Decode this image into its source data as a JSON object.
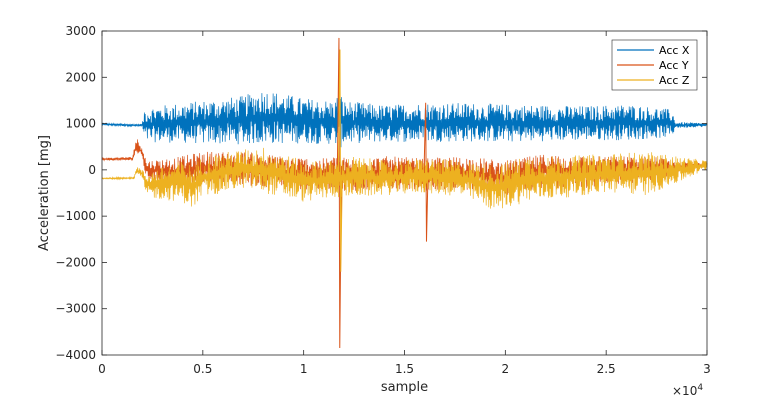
{
  "chart_data": {
    "type": "line",
    "title": "",
    "xlabel": "sample",
    "ylabel": "Acceleration [mg]",
    "x_exponent_label": "×10",
    "x_exponent_power": "4",
    "xlim": [
      0,
      30000
    ],
    "ylim": [
      -4000,
      3000
    ],
    "x_ticks": [
      0,
      5000,
      10000,
      15000,
      20000,
      25000,
      30000
    ],
    "x_tick_labels": [
      "0",
      "0.5",
      "1",
      "1.5",
      "2",
      "2.5",
      "3"
    ],
    "y_ticks": [
      -4000,
      -3000,
      -2000,
      -1000,
      0,
      1000,
      2000,
      3000
    ],
    "y_tick_labels": [
      "−4000",
      "−3000",
      "−2000",
      "−1000",
      "0",
      "1000",
      "2000",
      "3000"
    ],
    "grid": false,
    "legend_position": "top-right",
    "series": [
      {
        "name": "Acc X",
        "color": "#0072BD",
        "rendering": "band",
        "points": [
          [
            0,
            960,
            1010
          ],
          [
            1500,
            940,
            990
          ],
          [
            2000,
            930,
            1000
          ],
          [
            2100,
            600,
            1350
          ],
          [
            4000,
            580,
            1450
          ],
          [
            5000,
            560,
            1500
          ],
          [
            7000,
            550,
            1600
          ],
          [
            8000,
            560,
            1750
          ],
          [
            10000,
            570,
            1550
          ],
          [
            11500,
            550,
            1500
          ],
          [
            11800,
            450,
            1700
          ],
          [
            12000,
            560,
            1500
          ],
          [
            14000,
            600,
            1400
          ],
          [
            16000,
            600,
            1450
          ],
          [
            18000,
            610,
            1450
          ],
          [
            20000,
            600,
            1420
          ],
          [
            22000,
            620,
            1400
          ],
          [
            24000,
            640,
            1380
          ],
          [
            26000,
            640,
            1420
          ],
          [
            27500,
            680,
            1350
          ],
          [
            28300,
            700,
            1300
          ],
          [
            28400,
            900,
            1040
          ],
          [
            30000,
            930,
            1010
          ]
        ]
      },
      {
        "name": "Acc Y",
        "color": "#D95319",
        "rendering": "band",
        "points": [
          [
            0,
            200,
            260
          ],
          [
            1500,
            200,
            280
          ],
          [
            1700,
            350,
            700
          ],
          [
            2000,
            200,
            550
          ],
          [
            2200,
            -200,
            200
          ],
          [
            4000,
            -400,
            300
          ],
          [
            5000,
            -300,
            400
          ],
          [
            7000,
            -350,
            400
          ],
          [
            9000,
            -400,
            300
          ],
          [
            11000,
            -450,
            250
          ],
          [
            11500,
            -400,
            300
          ],
          [
            12500,
            -500,
            250
          ],
          [
            14000,
            -400,
            300
          ],
          [
            16000,
            -450,
            250
          ],
          [
            18000,
            -450,
            300
          ],
          [
            20000,
            -550,
            200
          ],
          [
            22000,
            -400,
            350
          ],
          [
            24000,
            -400,
            300
          ],
          [
            26000,
            -300,
            300
          ],
          [
            27500,
            -250,
            300
          ],
          [
            28500,
            -50,
            150
          ],
          [
            30000,
            50,
            180
          ]
        ],
        "spikes": [
          [
            11750,
            -3850,
            2850
          ],
          [
            16050,
            -1550,
            1450
          ]
        ]
      },
      {
        "name": "Acc Z",
        "color": "#EDB120",
        "rendering": "band",
        "points": [
          [
            0,
            -200,
            -170
          ],
          [
            1600,
            -200,
            -150
          ],
          [
            1700,
            -100,
            100
          ],
          [
            2000,
            -200,
            0
          ],
          [
            2200,
            -600,
            -50
          ],
          [
            4000,
            -700,
            200
          ],
          [
            4500,
            -850,
            100
          ],
          [
            5000,
            -600,
            300
          ],
          [
            7000,
            -400,
            450
          ],
          [
            8000,
            -500,
            500
          ],
          [
            10000,
            -700,
            200
          ],
          [
            11500,
            -600,
            200
          ],
          [
            12500,
            -600,
            300
          ],
          [
            14000,
            -550,
            200
          ],
          [
            16000,
            -500,
            250
          ],
          [
            18000,
            -600,
            200
          ],
          [
            19500,
            -900,
            100
          ],
          [
            21000,
            -700,
            300
          ],
          [
            23000,
            -600,
            300
          ],
          [
            25000,
            -500,
            350
          ],
          [
            27000,
            -550,
            400
          ],
          [
            28500,
            -300,
            300
          ],
          [
            30000,
            0,
            200
          ]
        ],
        "spikes": [
          [
            11800,
            -2200,
            2600
          ]
        ]
      }
    ]
  }
}
